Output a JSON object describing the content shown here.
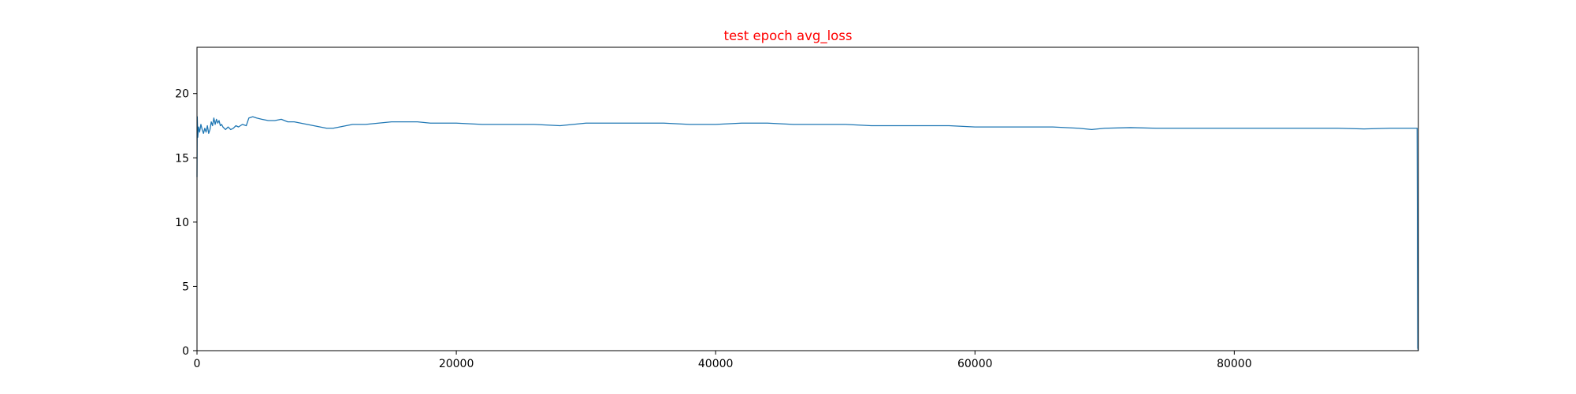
{
  "chart_data": {
    "type": "line",
    "title": "test epoch avg_loss",
    "title_color": "#ff0000",
    "xlabel": "",
    "ylabel": "",
    "xlim": [
      0,
      94200
    ],
    "ylim": [
      0,
      23.6
    ],
    "x_ticks": [
      0,
      20000,
      40000,
      60000,
      80000
    ],
    "x_tick_labels": [
      "0",
      "20000",
      "40000",
      "60000",
      "80000"
    ],
    "y_ticks": [
      0,
      5,
      10,
      15,
      20
    ],
    "y_tick_labels": [
      "0",
      "5",
      "10",
      "15",
      "20"
    ],
    "grid": false,
    "line_color": "#1f77b4",
    "series": [
      {
        "values_x": [
          0,
          20,
          60,
          120,
          200,
          300,
          400,
          500,
          600,
          700,
          800,
          900,
          1000,
          1100,
          1200,
          1300,
          1400,
          1500,
          1600,
          1700,
          1800,
          1900,
          2000,
          2200,
          2400,
          2600,
          2800,
          3000,
          3200,
          3500,
          3800,
          4000,
          4300,
          4600,
          5000,
          5500,
          6000,
          6500,
          7000,
          7500,
          8000,
          8500,
          9000,
          9500,
          10000,
          10500,
          11000,
          12000,
          13000,
          14000,
          15000,
          16000,
          17000,
          18000,
          19000,
          20000,
          22000,
          24000,
          26000,
          28000,
          30000,
          32000,
          34000,
          36000,
          38000,
          40000,
          42000,
          44000,
          46000,
          48000,
          50000,
          52000,
          54000,
          56000,
          58000,
          60000,
          62000,
          64000,
          66000,
          68000,
          69000,
          70000,
          72000,
          74000,
          76000,
          78000,
          80000,
          82000,
          84000,
          86000,
          88000,
          90000,
          92000,
          94100,
          94150,
          94200
        ],
        "values_y": [
          13.5,
          18.2,
          16.6,
          17.4,
          17.0,
          17.6,
          17.2,
          16.9,
          17.3,
          17.0,
          17.5,
          16.9,
          17.2,
          17.8,
          17.5,
          18.1,
          17.6,
          18.0,
          17.7,
          17.9,
          17.5,
          17.6,
          17.4,
          17.2,
          17.4,
          17.2,
          17.3,
          17.5,
          17.4,
          17.6,
          17.5,
          18.1,
          18.2,
          18.1,
          18.0,
          17.9,
          17.9,
          18.0,
          17.8,
          17.8,
          17.7,
          17.6,
          17.5,
          17.4,
          17.3,
          17.3,
          17.4,
          17.6,
          17.6,
          17.7,
          17.8,
          17.8,
          17.8,
          17.7,
          17.7,
          17.7,
          17.6,
          17.6,
          17.6,
          17.5,
          17.7,
          17.7,
          17.7,
          17.7,
          17.6,
          17.6,
          17.7,
          17.7,
          17.6,
          17.6,
          17.6,
          17.5,
          17.5,
          17.5,
          17.5,
          17.4,
          17.4,
          17.4,
          17.4,
          17.3,
          17.2,
          17.3,
          17.35,
          17.3,
          17.3,
          17.3,
          17.3,
          17.3,
          17.3,
          17.3,
          17.3,
          17.25,
          17.3,
          17.3,
          0.2,
          0.0
        ]
      }
    ]
  }
}
